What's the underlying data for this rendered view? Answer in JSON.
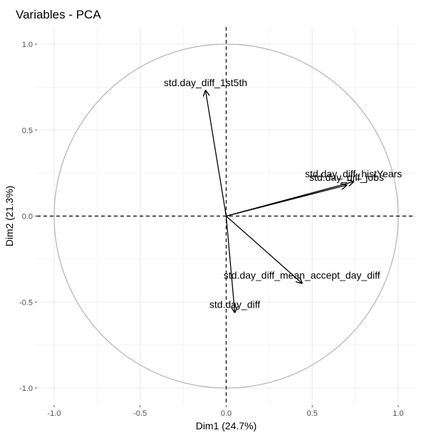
{
  "chart_data": {
    "type": "scatter",
    "subtype": "pca-variable-correlation-circle",
    "title": "Variables - PCA",
    "xlabel": "Dim1 (24.7%)",
    "ylabel": "Dim2 (21.3%)",
    "xlim": [
      -1.1,
      1.1
    ],
    "ylim": [
      -1.1,
      1.1
    ],
    "x_ticks": [
      -1.0,
      -0.5,
      0.0,
      0.5,
      1.0
    ],
    "y_ticks": [
      -1.0,
      -0.5,
      0.0,
      0.5,
      1.0
    ],
    "x_tick_labels": [
      "-1.0",
      "-0.5",
      "0.0",
      "0.5",
      "1.0"
    ],
    "y_tick_labels": [
      "-1.0",
      "-0.5",
      "0.0",
      "0.5",
      "1.0"
    ],
    "grid": true,
    "unit_circle": true,
    "reference_lines": [
      {
        "axis": "x",
        "value": 0
      },
      {
        "axis": "y",
        "value": 0
      }
    ],
    "variables": [
      {
        "name": "std.day_diff_1st5th",
        "x": -0.12,
        "y": 0.73
      },
      {
        "name": "std.day_diff_histYears",
        "x": 0.74,
        "y": 0.2
      },
      {
        "name": "std.day_diff_jobs",
        "x": 0.7,
        "y": 0.18
      },
      {
        "name": "std.day_diff_mean_accept_day_diff",
        "x": 0.44,
        "y": -0.39
      },
      {
        "name": "std.day_diff",
        "x": 0.05,
        "y": -0.56
      }
    ]
  },
  "colors": {
    "panel_background": "#ffffff",
    "grid": "#ebebeb",
    "circle": "#b3b3b3",
    "arrows": "#000000",
    "reference_lines": "#000000"
  }
}
